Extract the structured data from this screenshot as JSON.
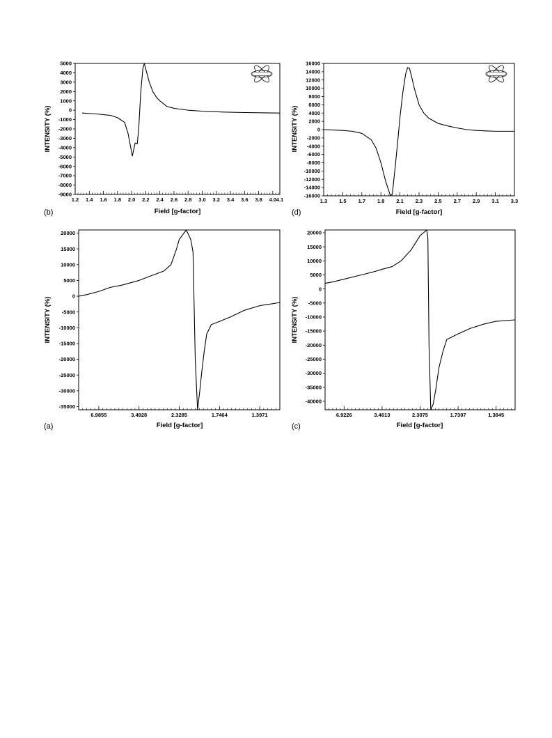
{
  "chart_data": [
    {
      "panel": "(b)",
      "type": "line",
      "xlabel": "Field [g-factor]",
      "ylabel": "INTENSITY (%)",
      "xlim": [
        1.2,
        4.1
      ],
      "ylim": [
        -9000,
        5000
      ],
      "yticks": [
        5000,
        4000,
        3000,
        2000,
        1000,
        0,
        -1000,
        -2000,
        -3000,
        -4000,
        -5000,
        -6000,
        -7000,
        -8000,
        -9000
      ],
      "yticklabels": [
        "5000",
        "4000",
        "3000",
        "2000",
        "1000",
        "0",
        "-1000",
        "-2000",
        "-3000",
        "-4000",
        "-5000",
        "-6000",
        "-7000",
        "-8000",
        "-9000"
      ],
      "xticks": [
        1.2,
        1.4,
        1.6,
        1.8,
        2.0,
        2.2,
        2.4,
        2.6,
        2.8,
        3.0,
        3.2,
        3.4,
        3.6,
        3.8,
        4.0,
        4.1
      ],
      "xticklabels": [
        "1.2",
        "1.4",
        "1.6",
        "1.8",
        "2.0",
        "2.2",
        "2.4",
        "2.6",
        "2.8",
        "3.0",
        "3.2",
        "3.4",
        "3.6",
        "3.8",
        "4.0",
        "4.1"
      ],
      "minor_x": 5,
      "minor_y": 1,
      "has_logo": true,
      "x": [
        1.3,
        1.5,
        1.7,
        1.8,
        1.9,
        1.95,
        2.0,
        2.01,
        2.03,
        2.05,
        2.08,
        2.1,
        2.13,
        2.16,
        2.18,
        2.2,
        2.25,
        2.3,
        2.35,
        2.4,
        2.5,
        2.6,
        2.8,
        3.0,
        3.3,
        3.6,
        4.1
      ],
      "y": [
        -300,
        -400,
        -550,
        -800,
        -1300,
        -2500,
        -4500,
        -4900,
        -4200,
        -3500,
        -3600,
        -2000,
        2000,
        4500,
        5000,
        4400,
        3000,
        2000,
        1400,
        1000,
        400,
        200,
        0,
        -100,
        -200,
        -250,
        -300
      ]
    },
    {
      "panel": "(d)",
      "type": "line",
      "xlabel": "Field [g-factor]",
      "ylabel": "INTENSITY (%)",
      "xlim": [
        1.3,
        3.3
      ],
      "ylim": [
        -16000,
        16000
      ],
      "yticks": [
        16000,
        14000,
        12000,
        10000,
        8000,
        6000,
        4000,
        2000,
        0,
        -2000,
        -4000,
        -6000,
        -8000,
        -10000,
        -12000,
        -14000,
        -16000
      ],
      "yticklabels": [
        "16000",
        "14000",
        "12000",
        "10000",
        "8000",
        "6000",
        "4000",
        "2000",
        "0",
        "-2000",
        "-4000",
        "-6000",
        "-8000",
        "-10000",
        "-12000",
        "-14000",
        "-16000"
      ],
      "xticks": [
        1.3,
        1.5,
        1.7,
        1.9,
        2.1,
        2.3,
        2.5,
        2.7,
        2.9,
        3.1,
        3.3
      ],
      "xticklabels": [
        "1.3",
        "1.5",
        "1.7",
        "1.9",
        "2.1",
        "2.3",
        "2.5",
        "2.7",
        "2.9",
        "3.1",
        "3.3"
      ],
      "minor_x": 5,
      "minor_y": 1,
      "has_logo": true,
      "x": [
        1.3,
        1.4,
        1.5,
        1.6,
        1.7,
        1.8,
        1.85,
        1.9,
        1.95,
        2.0,
        2.02,
        2.05,
        2.08,
        2.1,
        2.13,
        2.16,
        2.18,
        2.2,
        2.22,
        2.25,
        2.3,
        2.35,
        2.4,
        2.5,
        2.6,
        2.7,
        2.8,
        2.9,
        3.0,
        3.1,
        3.3
      ],
      "y": [
        0,
        -100,
        -200,
        -400,
        -900,
        -2500,
        -4500,
        -8000,
        -12500,
        -16000,
        -15500,
        -9000,
        -2000,
        3000,
        9000,
        13500,
        15000,
        14800,
        13000,
        10000,
        6000,
        4000,
        2800,
        1500,
        900,
        400,
        0,
        -200,
        -300,
        -400,
        -400
      ]
    },
    {
      "panel": "(a)",
      "type": "line",
      "xlabel": "Field [g-factor]",
      "ylabel": "INTENSITY (%)",
      "xlim": [
        13.971,
        1.2702
      ],
      "reciprocal_x": true,
      "ylim": [
        -36000,
        21000
      ],
      "yticks": [
        20000,
        15000,
        10000,
        5000,
        0,
        -5000,
        -10000,
        -15000,
        -20000,
        -25000,
        -30000,
        -35000
      ],
      "yticklabels": [
        "20000",
        "15000",
        "10000",
        "5000",
        "0",
        "-5000",
        "-10000",
        "-15000",
        "-20000",
        "-25000",
        "-30000",
        "-35000"
      ],
      "xticks": [
        6.9855,
        3.4928,
        2.3285,
        1.7464,
        1.3971
      ],
      "xticklabels": [
        "6.9855",
        "3.4928",
        "2.3285",
        "1.7464",
        "1.3971"
      ],
      "minor_x": 5,
      "minor_y": 1,
      "has_logo": false,
      "x": [
        13.971,
        9.98,
        6.9855,
        5.434,
        4.446,
        3.762,
        3.4928,
        3.031,
        2.667,
        2.5,
        2.382,
        2.3285,
        2.2,
        2.126,
        2.09,
        2.056,
        2.022,
        1.99,
        1.958,
        1.927,
        1.897,
        1.84,
        1.7464,
        1.63,
        1.515,
        1.3971,
        1.2702
      ],
      "y": [
        0,
        500,
        1500,
        2800,
        3500,
        4500,
        5000,
        6500,
        8000,
        10000,
        15000,
        18000,
        21000,
        18000,
        14000,
        -20000,
        -36000,
        -30000,
        -23000,
        -17000,
        -12000,
        -9000,
        -8000,
        -6500,
        -4500,
        -3000,
        -2000
      ]
    },
    {
      "panel": "(c)",
      "type": "line",
      "xlabel": "Field [g-factor]",
      "ylabel": "INTENSITY (%)",
      "xlim": [
        13.845,
        1.2587
      ],
      "reciprocal_x": true,
      "ylim": [
        -43000,
        21000
      ],
      "yticks": [
        20000,
        15000,
        10000,
        5000,
        0,
        -5000,
        -10000,
        -15000,
        -20000,
        -25000,
        -30000,
        -35000,
        -40000
      ],
      "yticklabels": [
        "20000",
        "15000",
        "10000",
        "5000",
        "0",
        "-5000",
        "-10000",
        "-15000",
        "-20000",
        "-25000",
        "-30000",
        "-35000",
        "-40000"
      ],
      "xticks": [
        6.9226,
        3.4613,
        2.3075,
        1.7307,
        1.3845
      ],
      "xticklabels": [
        "6.9226",
        "3.4613",
        "2.3075",
        "1.7307",
        "1.3845"
      ],
      "minor_x": 5,
      "minor_y": 1,
      "has_logo": false,
      "x": [
        13.845,
        9.889,
        6.9226,
        5.325,
        4.326,
        3.955,
        3.4613,
        3.05,
        2.77,
        2.5,
        2.3075,
        2.18,
        2.16,
        2.14,
        2.11,
        2.07,
        2.03,
        1.98,
        1.92,
        1.87,
        1.7307,
        1.6,
        1.48,
        1.3845,
        1.2587
      ],
      "y": [
        2000,
        2500,
        3500,
        4500,
        5500,
        6000,
        7000,
        8000,
        10000,
        14000,
        19000,
        21000,
        18000,
        -20000,
        -43000,
        -41000,
        -36000,
        -28000,
        -22000,
        -18000,
        -16000,
        -14000,
        -12500,
        -11500,
        -11000
      ]
    }
  ],
  "panels": {
    "b": {
      "label": "(b)",
      "xlabel": "Field [g-factor]",
      "ylabel": "INTENSITY (%)"
    },
    "d": {
      "label": "(d)",
      "xlabel": "Field [g-factor]",
      "ylabel": "INTENSITY (%)"
    },
    "a": {
      "label": "(a)",
      "xlabel": "Field [g-factor]",
      "ylabel": "INTENSITY (%)"
    },
    "c": {
      "label": "(c)",
      "xlabel": "Field [g-factor]",
      "ylabel": "INTENSITY (%)"
    }
  }
}
